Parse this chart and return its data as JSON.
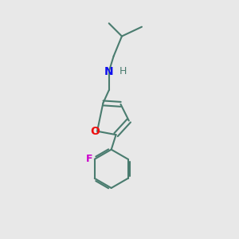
{
  "bg_color": "#e8e8e8",
  "bond_color": "#4a7c6f",
  "N_color": "#1010ee",
  "O_color": "#ee1010",
  "F_color": "#cc00cc",
  "line_width": 1.5,
  "font_size": 9,
  "fig_size": [
    3.0,
    3.0
  ],
  "dpi": 100,
  "xlim": [
    0,
    10
  ],
  "ylim": [
    0,
    10
  ]
}
